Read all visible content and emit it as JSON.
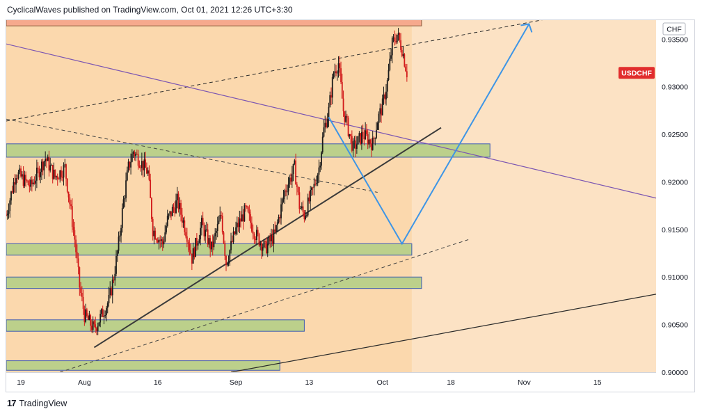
{
  "header": {
    "publisher_text": "CyclicalWaves published on TradingView.com, Oct 01, 2021 12:26 UTC+3:30"
  },
  "footer": {
    "logo_icon": "tradingview-logo-icon",
    "brand_label": "TradingView"
  },
  "colors": {
    "background": "#fbd8ad",
    "background_recent": "#fce2c4",
    "candle_up": "#1b1b1b",
    "candle_down": "#d11a1a",
    "resistance_zone": "#f6a98d",
    "support_zone": "#bcd08b",
    "zone_border": "#3b5bb0",
    "projection_line": "#3d95e6",
    "channel_line": "#333333",
    "trend_line_purple": "#7b55b2",
    "symbol_badge": "#e12d2d"
  },
  "chart_data": {
    "type": "candlestick",
    "symbol_label": "USDCHF",
    "currency_label": "CHF",
    "y_ticks": [
      "0.93500",
      "0.93000",
      "0.92500",
      "0.92000",
      "0.91500",
      "0.91000",
      "0.90500",
      "0.90000"
    ],
    "y_tick_values": [
      0.935,
      0.93,
      0.925,
      0.92,
      0.915,
      0.91,
      0.905,
      0.9
    ],
    "ylim": [
      0.9,
      0.937
    ],
    "x_ticks": [
      "19",
      "Aug",
      "16",
      "Sep",
      "13",
      "Oct",
      "18",
      "Nov",
      "15"
    ],
    "x_tick_days": [
      0,
      13,
      28,
      44,
      59,
      74,
      88,
      103,
      118
    ],
    "x_start_label": "Jul 19, 2021",
    "x_range_days": [
      -3,
      130
    ],
    "price_path": [
      [
        -3,
        0.9165
      ],
      [
        -1,
        0.921
      ],
      [
        2,
        0.9195
      ],
      [
        5,
        0.9225
      ],
      [
        7,
        0.9205
      ],
      [
        9,
        0.9215
      ],
      [
        11,
        0.914
      ],
      [
        12,
        0.909
      ],
      [
        13,
        0.906
      ],
      [
        15,
        0.9045
      ],
      [
        16,
        0.9055
      ],
      [
        18,
        0.9075
      ],
      [
        19,
        0.91
      ],
      [
        20,
        0.9135
      ],
      [
        21,
        0.918
      ],
      [
        22,
        0.9215
      ],
      [
        23,
        0.9232
      ],
      [
        24,
        0.9225
      ],
      [
        26,
        0.921
      ],
      [
        27,
        0.915
      ],
      [
        29,
        0.9135
      ],
      [
        30,
        0.916
      ],
      [
        32,
        0.918
      ],
      [
        34,
        0.9145
      ],
      [
        35,
        0.912
      ],
      [
        37,
        0.9155
      ],
      [
        39,
        0.913
      ],
      [
        41,
        0.9165
      ],
      [
        42,
        0.9115
      ],
      [
        44,
        0.915
      ],
      [
        46,
        0.917
      ],
      [
        48,
        0.9145
      ],
      [
        50,
        0.913
      ],
      [
        52,
        0.9145
      ],
      [
        54,
        0.919
      ],
      [
        56,
        0.9215
      ],
      [
        57,
        0.9175
      ],
      [
        58,
        0.9165
      ],
      [
        60,
        0.9195
      ],
      [
        61,
        0.9215
      ],
      [
        62,
        0.9255
      ],
      [
        63,
        0.9275
      ],
      [
        64,
        0.9315
      ],
      [
        65,
        0.9325
      ],
      [
        66,
        0.9275
      ],
      [
        67,
        0.9255
      ],
      [
        68,
        0.9235
      ],
      [
        70,
        0.925
      ],
      [
        72,
        0.924
      ],
      [
        73,
        0.9265
      ],
      [
        74,
        0.928
      ],
      [
        75,
        0.9305
      ],
      [
        76,
        0.9345
      ],
      [
        77,
        0.9355
      ],
      [
        78,
        0.934
      ],
      [
        79,
        0.9315
      ]
    ],
    "zones": [
      {
        "kind": "resistance",
        "from_day": -3,
        "to_day": 82,
        "low": 0.9364,
        "high": 0.9373
      },
      {
        "kind": "support",
        "from_day": -3,
        "to_day": 96,
        "low": 0.9226,
        "high": 0.924
      },
      {
        "kind": "support",
        "from_day": -3,
        "to_day": 80,
        "low": 0.9123,
        "high": 0.9135
      },
      {
        "kind": "support",
        "from_day": -3,
        "to_day": 82,
        "low": 0.9088,
        "high": 0.91
      },
      {
        "kind": "support",
        "from_day": -3,
        "to_day": 58,
        "low": 0.9043,
        "high": 0.9055
      },
      {
        "kind": "support",
        "from_day": -3,
        "to_day": 53,
        "low": 0.9002,
        "high": 0.9012
      }
    ],
    "trend_lines": [
      {
        "kind": "solid-dark",
        "from": [
          15,
          0.9026
        ],
        "to": [
          86,
          0.9257
        ]
      },
      {
        "kind": "dashed-upper",
        "from": [
          -3,
          0.9264
        ],
        "to": [
          125,
          0.9388
        ]
      },
      {
        "kind": "dashed-mid",
        "from": [
          -3,
          0.9266
        ],
        "to": [
          73,
          0.9189
        ]
      },
      {
        "kind": "dashed-lower",
        "from": [
          8,
          0.9
        ],
        "to": [
          92,
          0.914
        ]
      },
      {
        "kind": "purple",
        "from": [
          -3,
          0.9345
        ],
        "to": [
          130,
          0.9183
        ]
      },
      {
        "kind": "solid-long",
        "from": [
          43,
          0.9
        ],
        "to": [
          130,
          0.9082
        ]
      }
    ],
    "projection_path": [
      [
        63,
        0.9268
      ],
      [
        78,
        0.9135
      ],
      [
        104,
        0.9366
      ]
    ]
  }
}
